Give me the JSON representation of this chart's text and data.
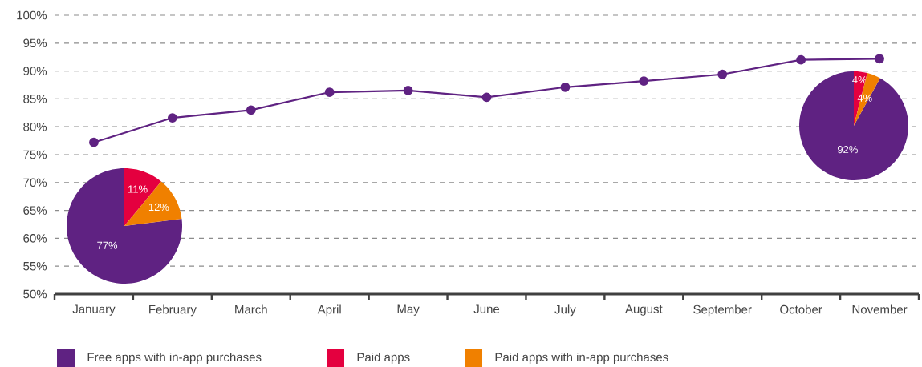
{
  "chart_data": [
    {
      "type": "line",
      "categories": [
        "January",
        "February",
        "March",
        "April",
        "May",
        "June",
        "July",
        "August",
        "September",
        "October",
        "November"
      ],
      "values": [
        77.2,
        81.6,
        83.0,
        86.2,
        86.5,
        85.3,
        87.1,
        88.2,
        89.4,
        92.0,
        92.2
      ],
      "color": "#5f2282",
      "ylim": [
        50,
        100
      ],
      "yticks": [
        {
          "value": 50,
          "label": "50%"
        },
        {
          "value": 55,
          "label": "55%"
        },
        {
          "value": 60,
          "label": "60%"
        },
        {
          "value": 65,
          "label": "65%"
        },
        {
          "value": 70,
          "label": "70%"
        },
        {
          "value": 75,
          "label": "75%"
        },
        {
          "value": 80,
          "label": "80%"
        },
        {
          "value": 85,
          "label": "85%"
        },
        {
          "value": 90,
          "label": "90%"
        },
        {
          "value": 95,
          "label": "95%"
        },
        {
          "value": 100,
          "label": "100%"
        }
      ],
      "grid": "y",
      "marker": "circle",
      "line_style": "solid"
    },
    {
      "type": "pie",
      "categories": [
        "Free apps with in-app purchases",
        "Paid apps",
        "Paid apps with in-app purchases"
      ],
      "values": [
        77,
        11,
        12
      ],
      "colors": [
        "#5f2282",
        "#e4003f",
        "#f08000"
      ],
      "value_labels": [
        "77%",
        "11%",
        "12%"
      ],
      "legend": "bottom"
    },
    {
      "type": "pie",
      "categories": [
        null,
        null,
        null
      ],
      "values": [
        92,
        4,
        4
      ],
      "colors": [
        "#5f2282",
        "#e4003f",
        "#f08000"
      ],
      "value_labels": [
        "92%",
        "4%",
        "4%"
      ]
    }
  ]
}
